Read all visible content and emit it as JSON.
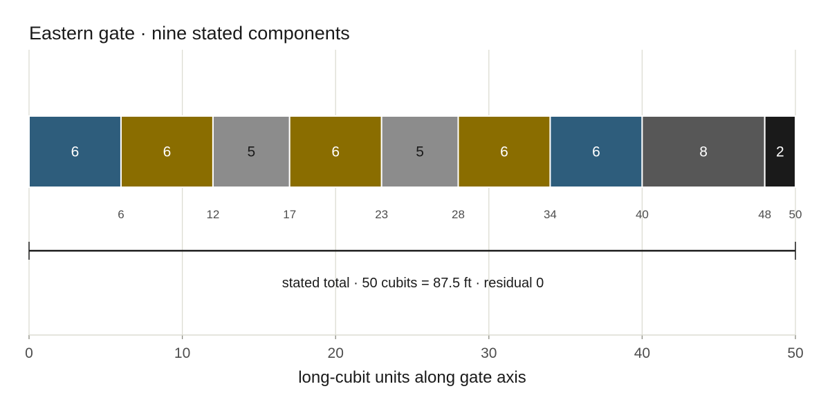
{
  "chart_data": {
    "type": "bar",
    "orientation": "horizontal-stacked",
    "title": "Eastern gate · nine stated components",
    "xlabel": "long-cubit units along gate axis",
    "xlim": [
      0,
      50
    ],
    "xticks": [
      "0",
      "10",
      "20",
      "30",
      "40",
      "50"
    ],
    "grid": true,
    "segments": [
      {
        "value": 6,
        "label": "6",
        "color": "#2e5d7c",
        "text_color": "#ffffff"
      },
      {
        "value": 6,
        "label": "6",
        "color": "#8a6d00",
        "text_color": "#ffffff"
      },
      {
        "value": 5,
        "label": "5",
        "color": "#8c8c8c",
        "text_color": "#1a1a1a"
      },
      {
        "value": 6,
        "label": "6",
        "color": "#8a6d00",
        "text_color": "#ffffff"
      },
      {
        "value": 5,
        "label": "5",
        "color": "#8c8c8c",
        "text_color": "#1a1a1a"
      },
      {
        "value": 6,
        "label": "6",
        "color": "#8a6d00",
        "text_color": "#ffffff"
      },
      {
        "value": 6,
        "label": "6",
        "color": "#2e5d7c",
        "text_color": "#ffffff"
      },
      {
        "value": 8,
        "label": "8",
        "color": "#575757",
        "text_color": "#ffffff"
      },
      {
        "value": 2,
        "label": "2",
        "color": "#1a1a1a",
        "text_color": "#ffffff"
      }
    ],
    "cumulative_labels": [
      "6",
      "12",
      "17",
      "23",
      "28",
      "34",
      "40",
      "48",
      "50"
    ],
    "total_span": [
      0,
      50
    ],
    "total_annotation": "stated total · 50 cubits = 87.5 ft · residual 0"
  }
}
